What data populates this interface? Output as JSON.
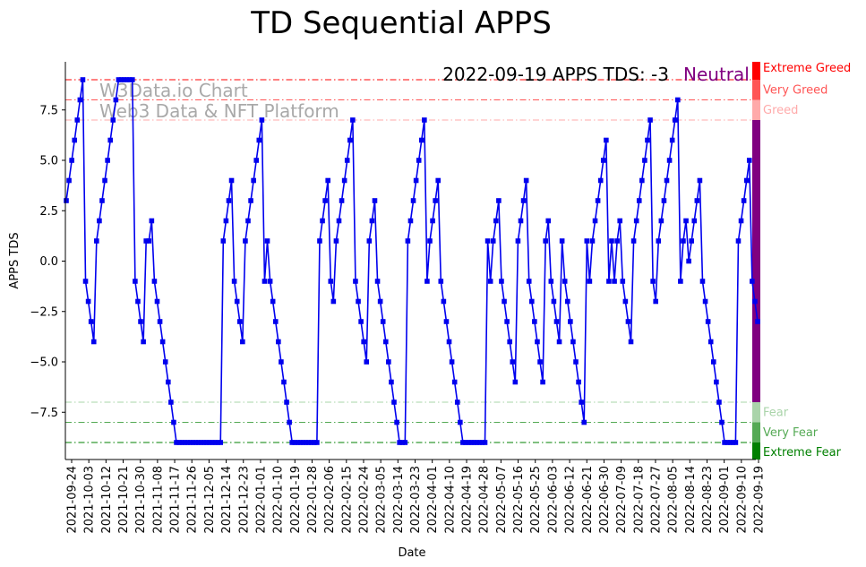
{
  "chart_data": {
    "type": "line",
    "title": "TD Sequential APPS",
    "xlabel": "Date",
    "ylabel": "APPS TDS",
    "annotation": "2022-09-19 APPS TDS: -3",
    "status": "Neutral",
    "watermark_line1": "W3Data.io Chart",
    "watermark_line2": "Web3 Data & NFT Platform",
    "ylim": [
      -9.8,
      9.8
    ],
    "yticks": [
      {
        "v": 7.5,
        "label": "7.5"
      },
      {
        "v": 5.0,
        "label": "5.0"
      },
      {
        "v": 2.5,
        "label": "2.5"
      },
      {
        "v": 0.0,
        "label": "0.0"
      },
      {
        "v": -2.5,
        "label": "−2.5"
      },
      {
        "v": -5.0,
        "label": "−5.0"
      },
      {
        "v": -7.5,
        "label": "−7.5"
      }
    ],
    "xticks": [
      "2021-09-24",
      "2021-10-03",
      "2021-10-12",
      "2021-10-21",
      "2021-10-30",
      "2021-11-08",
      "2021-11-17",
      "2021-11-26",
      "2021-12-05",
      "2021-12-14",
      "2021-12-23",
      "2022-01-01",
      "2022-01-10",
      "2022-01-19",
      "2022-01-28",
      "2022-02-06",
      "2022-02-15",
      "2022-02-24",
      "2022-03-05",
      "2022-03-14",
      "2022-03-23",
      "2022-04-01",
      "2022-04-10",
      "2022-04-19",
      "2022-04-28",
      "2022-05-07",
      "2022-05-16",
      "2022-05-25",
      "2022-06-03",
      "2022-06-12",
      "2022-06-21",
      "2022-06-30",
      "2022-07-09",
      "2022-07-18",
      "2022-07-27",
      "2022-08-05",
      "2022-08-14",
      "2022-08-23",
      "2022-09-01",
      "2022-09-10",
      "2022-09-19"
    ],
    "levels": [
      {
        "name": "Extreme Greed",
        "value": 9,
        "color": "#ff0000"
      },
      {
        "name": "Very Greed",
        "value": 8,
        "color": "#ff5555"
      },
      {
        "name": "Greed",
        "value": 7,
        "color": "#ffaaaa"
      },
      {
        "name": "Fear",
        "value": -7,
        "color": "#aad4aa"
      },
      {
        "name": "Very Fear",
        "value": -8,
        "color": "#55aa55"
      },
      {
        "name": "Extreme Fear",
        "value": -9,
        "color": "#008000"
      }
    ],
    "neutral_color": "#800080",
    "series_color": "#0000ee",
    "series": [
      {
        "name": "APPS TDS",
        "values": [
          3,
          4,
          5,
          6,
          7,
          8,
          9,
          -1,
          -2,
          -3,
          -4,
          1,
          2,
          3,
          4,
          5,
          6,
          7,
          8,
          9,
          9,
          9,
          9,
          9,
          9,
          -1,
          -2,
          -3,
          -4,
          1,
          1,
          2,
          -1,
          -2,
          -3,
          -4,
          -5,
          -6,
          -7,
          -8,
          -9,
          -9,
          -9,
          -9,
          -9,
          -9,
          -9,
          -9,
          -9,
          -9,
          -9,
          -9,
          -9,
          -9,
          -9,
          -9,
          -9,
          1,
          2,
          3,
          4,
          -1,
          -2,
          -3,
          -4,
          1,
          2,
          3,
          4,
          5,
          6,
          7,
          -1,
          1,
          -1,
          -2,
          -3,
          -4,
          -5,
          -6,
          -7,
          -8,
          -9,
          -9,
          -9,
          -9,
          -9,
          -9,
          -9,
          -9,
          -9,
          -9,
          1,
          2,
          3,
          4,
          -1,
          -2,
          1,
          2,
          3,
          4,
          5,
          6,
          7,
          -1,
          -2,
          -3,
          -4,
          -5,
          1,
          2,
          3,
          -1,
          -2,
          -3,
          -4,
          -5,
          -6,
          -7,
          -8,
          -9,
          -9,
          -9,
          1,
          2,
          3,
          4,
          5,
          6,
          7,
          -1,
          1,
          2,
          3,
          4,
          -1,
          -2,
          -3,
          -4,
          -5,
          -6,
          -7,
          -8,
          -9,
          -9,
          -9,
          -9,
          -9,
          -9,
          -9,
          -9,
          -9,
          1,
          -1,
          1,
          2,
          3,
          -1,
          -2,
          -3,
          -4,
          -5,
          -6,
          1,
          2,
          3,
          4,
          -1,
          -2,
          -3,
          -4,
          -5,
          -6,
          1,
          2,
          -1,
          -2,
          -3,
          -4,
          1,
          -1,
          -2,
          -3,
          -4,
          -5,
          -6,
          -7,
          -8,
          1,
          -1,
          1,
          2,
          3,
          4,
          5,
          6,
          -1,
          1,
          -1,
          1,
          2,
          -1,
          -2,
          -3,
          -4,
          1,
          2,
          3,
          4,
          5,
          6,
          7,
          -1,
          -2,
          1,
          2,
          3,
          4,
          5,
          6,
          7,
          8,
          -1,
          1,
          2,
          0,
          1,
          2,
          3,
          4,
          -1,
          -2,
          -3,
          -4,
          -5,
          -6,
          -7,
          -8,
          -9,
          -9,
          -9,
          -9,
          -9,
          1,
          2,
          3,
          4,
          5,
          -1,
          -2,
          -3
        ]
      }
    ]
  }
}
